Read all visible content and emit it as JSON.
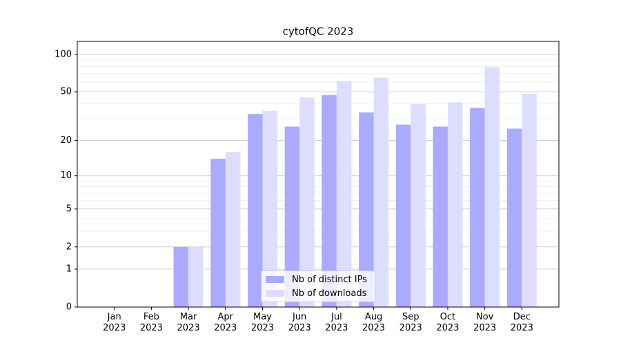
{
  "chart_data": {
    "type": "bar",
    "title": "cytofQC 2023",
    "categories": [
      "Jan 2023",
      "Feb 2023",
      "Mar 2023",
      "Apr 2023",
      "May 2023",
      "Jun 2023",
      "Jul 2023",
      "Aug 2023",
      "Sep 2023",
      "Oct 2023",
      "Nov 2023",
      "Dec 2023"
    ],
    "series": [
      {
        "name": "Nb of distinct IPs",
        "color": "#aaaaff",
        "values": [
          0,
          0,
          2,
          14,
          33,
          26,
          47,
          34,
          27,
          26,
          37,
          25
        ]
      },
      {
        "name": "Nb of downloads",
        "color": "#ddddff",
        "values": [
          0,
          0,
          2,
          16,
          35,
          45,
          61,
          65,
          40,
          41,
          79,
          48
        ]
      }
    ],
    "yscale": "log1p",
    "ylim": [
      0,
      127
    ],
    "yticks": [
      0,
      1,
      2,
      5,
      10,
      20,
      50,
      100
    ],
    "yminorticks": [
      3,
      4,
      6,
      7,
      8,
      9,
      30,
      40,
      60,
      70,
      80,
      90
    ],
    "grid": true,
    "legend": "lower center"
  }
}
